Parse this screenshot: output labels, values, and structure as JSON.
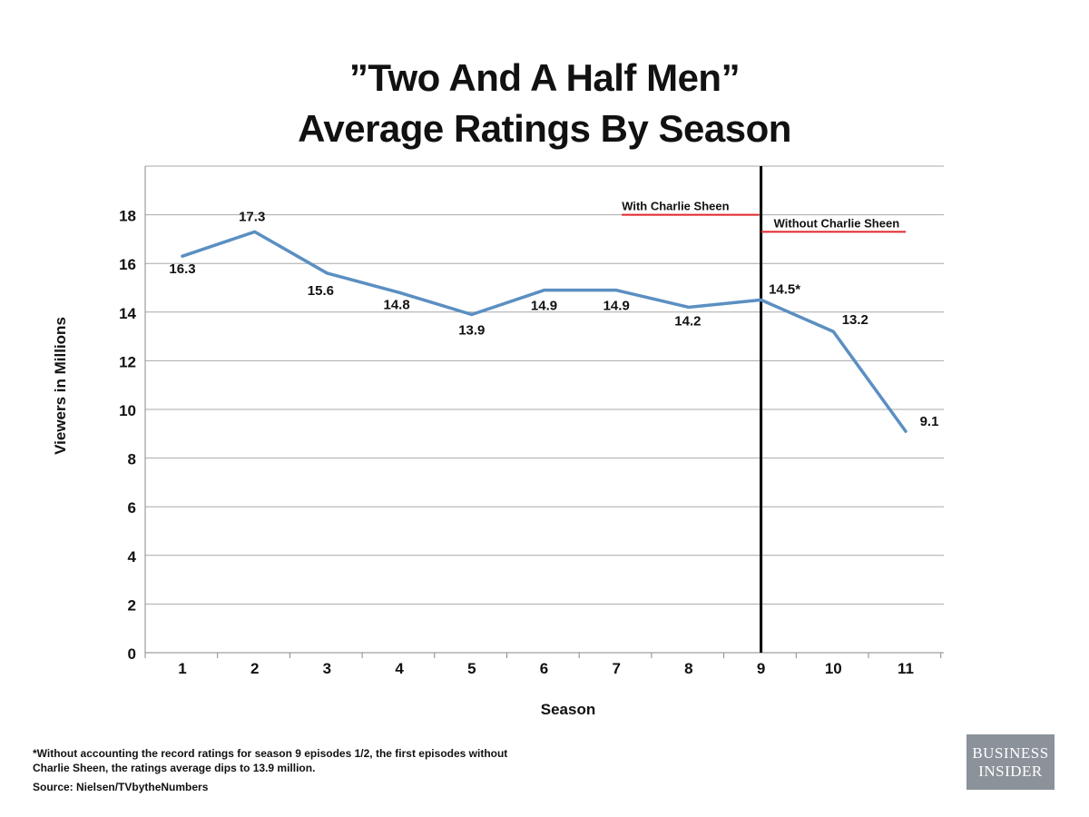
{
  "chart_data": {
    "type": "line",
    "title_lines": [
      "”Two And A Half Men”",
      "Average Ratings By Season"
    ],
    "xlabel": "Season",
    "ylabel": "Viewers in Millions",
    "categories": [
      "1",
      "2",
      "3",
      "4",
      "5",
      "6",
      "7",
      "8",
      "9",
      "10",
      "11"
    ],
    "values": [
      16.3,
      17.3,
      15.6,
      14.8,
      13.9,
      14.9,
      14.9,
      14.2,
      14.5,
      13.2,
      9.1
    ],
    "data_labels": [
      "16.3",
      "17.3",
      "15.6",
      "14.8",
      "13.9",
      "14.9",
      "14.9",
      "14.2",
      "14.5*",
      "13.2",
      "9.1"
    ],
    "ylim": [
      0,
      20
    ],
    "yticks": [
      0,
      2,
      4,
      6,
      8,
      10,
      12,
      14,
      16,
      18
    ],
    "grid": true,
    "legend": "none",
    "series_color": "#5b8fc2",
    "divider": {
      "season": 9,
      "color": "#000000"
    },
    "annotations": [
      {
        "text": "With Charlie Sheen",
        "y": 18.0,
        "from_season": 7,
        "to_season": 9,
        "color": "#e0262a"
      },
      {
        "text": "Without Charlie Sheen",
        "y": 17.3,
        "from_season": 9,
        "to_season": 11,
        "color": "#e0262a"
      }
    ]
  },
  "footnote_lines": [
    "*Without accounting the record ratings for season 9 episodes 1/2, the first episodes without",
    "Charlie Sheen, the ratings average dips to 13.9 million."
  ],
  "source": "Source: Nielsen/TVbytheNumbers",
  "logo": {
    "line1": "BUSINESS",
    "line2": "INSIDER"
  }
}
